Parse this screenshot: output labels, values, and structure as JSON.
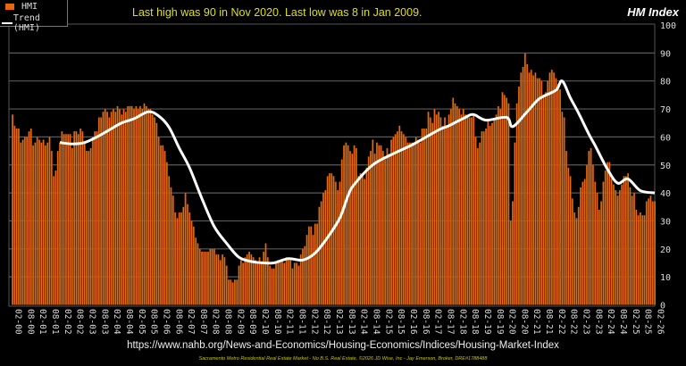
{
  "legend": {
    "bars": "HMI",
    "line": "Trend (HMI)"
  },
  "title": "Last high was 90 in Nov 2020. Last low was 8 in Jan 2009.",
  "corner_title": "HM Index",
  "source_url": "https://www.nahb.org/News-and-Economics/Housing-Economics/Indices/Housing-Market-Index",
  "footer": "Sacramento Metro Residential Real Estate Market - No B.S. Real Estate, ©2026 JD Wise, Inc - Jay Emerson, Broker, DRE#1788488",
  "colors": {
    "bars": "#e8650a",
    "trend": "#ffffff",
    "background": "#000000",
    "grid": "#666666",
    "title": "#e0e000"
  },
  "chart_data": {
    "type": "bar",
    "title": "HM Index",
    "ylim": [
      0,
      100
    ],
    "yticks": [
      0,
      10,
      20,
      30,
      40,
      50,
      60,
      70,
      80,
      90,
      100
    ],
    "grid": true,
    "y_axis_side": "right",
    "legend_placement": "top-left",
    "start_month": "2000-02",
    "xtick_labels": [
      "02-00",
      "08-00",
      "02-01",
      "08-01",
      "02-02",
      "08-02",
      "02-03",
      "08-03",
      "02-04",
      "08-04",
      "02-05",
      "08-05",
      "02-06",
      "08-06",
      "02-07",
      "08-07",
      "02-08",
      "08-08",
      "02-09",
      "08-09",
      "02-10",
      "08-10",
      "02-11",
      "08-11",
      "02-12",
      "08-12",
      "02-13",
      "08-13",
      "02-14",
      "08-14",
      "02-15",
      "08-15",
      "02-16",
      "08-16",
      "02-17",
      "08-17",
      "02-18",
      "08-18",
      "02-19",
      "08-19",
      "02-20",
      "08-20",
      "02-21",
      "08-21",
      "02-22",
      "08-22",
      "02-23",
      "08-23",
      "02-24",
      "08-24",
      "02-25",
      "08-25",
      "02-26"
    ],
    "series": [
      {
        "name": "HMI",
        "type": "bar",
        "values": [
          68,
          64,
          63,
          63,
          58,
          59,
          60,
          60,
          62,
          63,
          57,
          58,
          60,
          59,
          58,
          59,
          57,
          58,
          60,
          55,
          46,
          48,
          55,
          58,
          62,
          61,
          61,
          61,
          61,
          56,
          62,
          62,
          61,
          63,
          62,
          58,
          55,
          55,
          56,
          60,
          62,
          62,
          67,
          67,
          69,
          70,
          69,
          67,
          69,
          70,
          69,
          71,
          70,
          68,
          70,
          69,
          71,
          71,
          71,
          70,
          71,
          70,
          71,
          70,
          72,
          71,
          70,
          70,
          68,
          67,
          65,
          60,
          57,
          57,
          55,
          51,
          46,
          42,
          39,
          33,
          31,
          33,
          33,
          35,
          40,
          36,
          33,
          30,
          28,
          24,
          22,
          20,
          19,
          19,
          19,
          19,
          20,
          20,
          20,
          18,
          18,
          16,
          18,
          17,
          14,
          9,
          9,
          8,
          9,
          9,
          14,
          16,
          15,
          17,
          18,
          19,
          18,
          17,
          16,
          15,
          17,
          15,
          19,
          22,
          17,
          14,
          13,
          13,
          15,
          16,
          16,
          16,
          15,
          17,
          16,
          16,
          13,
          15,
          15,
          14,
          18,
          20,
          21,
          25,
          28,
          28,
          25,
          29,
          29,
          35,
          37,
          40,
          41,
          46,
          47,
          47,
          46,
          44,
          41,
          44,
          52,
          57,
          58,
          57,
          55,
          54,
          57,
          56,
          46,
          47,
          47,
          45,
          49,
          53,
          55,
          59,
          54,
          58,
          57,
          57,
          55,
          52,
          56,
          54,
          59,
          60,
          61,
          62,
          64,
          62,
          61,
          60,
          58,
          58,
          58,
          58,
          60,
          59,
          58,
          63,
          63,
          63,
          69,
          67,
          65,
          70,
          68,
          69,
          67,
          64,
          67,
          64,
          68,
          70,
          74,
          72,
          71,
          70,
          68,
          70,
          68,
          68,
          67,
          67,
          68,
          60,
          56,
          58,
          62,
          62,
          63,
          66,
          64,
          65,
          66,
          68,
          71,
          70,
          76,
          75,
          74,
          72,
          30,
          37,
          58,
          72,
          78,
          83,
          85,
          90,
          86,
          83,
          84,
          82,
          83,
          81,
          81,
          80,
          75,
          76,
          80,
          83,
          84,
          83,
          81,
          79,
          77,
          69,
          67,
          55,
          49,
          46,
          38,
          33,
          31,
          35,
          42,
          44,
          45,
          50,
          55,
          56,
          50,
          44,
          40,
          34,
          37,
          44,
          48,
          51,
          51,
          45,
          43,
          41,
          39,
          41,
          43,
          46,
          46,
          47,
          42,
          39,
          40,
          34,
          32,
          33,
          32,
          32,
          37,
          38,
          39,
          37,
          37
        ]
      },
      {
        "name": "Trend (HMI)",
        "type": "line",
        "points": [
          [
            "2002-01",
            58
          ],
          [
            "2002-07",
            57.5
          ],
          [
            "2003-01",
            58
          ],
          [
            "2003-07",
            60
          ],
          [
            "2004-01",
            62.5
          ],
          [
            "2004-07",
            65
          ],
          [
            "2005-01",
            66.5
          ],
          [
            "2005-08",
            69
          ],
          [
            "2006-01",
            67.5
          ],
          [
            "2006-06",
            63.5
          ],
          [
            "2006-11",
            56
          ],
          [
            "2007-04",
            49
          ],
          [
            "2007-10",
            38
          ],
          [
            "2008-04",
            28
          ],
          [
            "2008-10",
            22
          ],
          [
            "2009-04",
            17
          ],
          [
            "2009-10",
            15.5
          ],
          [
            "2010-04",
            15
          ],
          [
            "2010-09",
            15
          ],
          [
            "2011-04",
            16.5
          ],
          [
            "2011-11",
            16
          ],
          [
            "2012-05",
            18.5
          ],
          [
            "2012-11",
            24
          ],
          [
            "2013-05",
            31
          ],
          [
            "2013-09",
            39
          ],
          [
            "2013-12",
            43
          ],
          [
            "2014-09",
            50
          ],
          [
            "2015-07",
            54
          ],
          [
            "2016-05",
            57.5
          ],
          [
            "2017-05",
            62.5
          ],
          [
            "2017-10",
            64
          ],
          [
            "2018-06",
            67
          ],
          [
            "2018-10",
            68
          ],
          [
            "2019-04",
            66
          ],
          [
            "2020-02",
            67
          ],
          [
            "2020-05",
            63.7
          ],
          [
            "2020-12",
            69
          ],
          [
            "2021-06",
            73.7
          ],
          [
            "2022-02",
            76.7
          ],
          [
            "2022-05",
            80
          ],
          [
            "2022-09",
            74
          ],
          [
            "2023-01",
            68.5
          ],
          [
            "2023-06",
            61
          ],
          [
            "2023-09",
            57
          ],
          [
            "2024-03",
            48.5
          ],
          [
            "2024-08",
            43.5
          ],
          [
            "2025-01",
            45
          ],
          [
            "2025-07",
            40.8
          ],
          [
            "2026-02",
            40
          ]
        ]
      }
    ]
  }
}
